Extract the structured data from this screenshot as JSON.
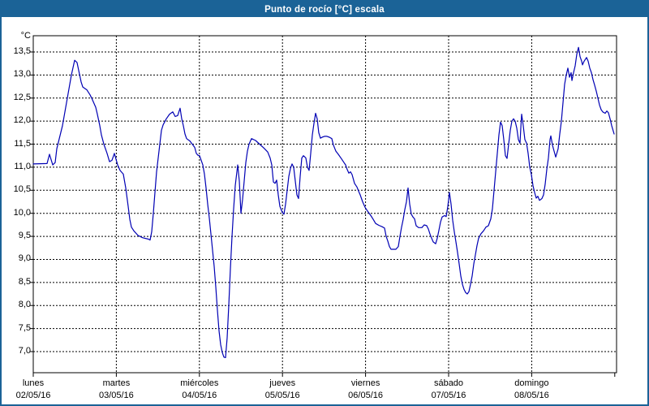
{
  "window": {
    "title": "Punto de rocío [°C] escala"
  },
  "colors": {
    "titlebar": "#1b6397",
    "window_border": "#1b6397",
    "line": "#0000b4",
    "grid": "#000000",
    "plot_border": "#000000",
    "text": "#000000",
    "background": "#ffffff"
  },
  "chart_data": {
    "type": "line",
    "title": "Punto de rocío [°C] escala",
    "ylabel": "°C",
    "xlabel": "",
    "grid": "dashed both axes",
    "legend": "none",
    "ylim": [
      6.55,
      13.85
    ],
    "xlim_days": [
      0,
      7.02
    ],
    "y_ticks": [
      {
        "label": "13,5",
        "v": 13.5
      },
      {
        "label": "13,0",
        "v": 13.0
      },
      {
        "label": "12,5",
        "v": 12.5
      },
      {
        "label": "12,0",
        "v": 12.0
      },
      {
        "label": "11,5",
        "v": 11.5
      },
      {
        "label": "11,0",
        "v": 11.0
      },
      {
        "label": "10,5",
        "v": 10.5
      },
      {
        "label": "10,0",
        "v": 10.0
      },
      {
        "label": "9,5",
        "v": 9.5
      },
      {
        "label": "9,0",
        "v": 9.0
      },
      {
        "label": "8,5",
        "v": 8.5
      },
      {
        "label": "8,0",
        "v": 8.0
      },
      {
        "label": "7,5",
        "v": 7.5
      },
      {
        "label": "7,0",
        "v": 7.0
      }
    ],
    "x_ticks": [
      {
        "weekday": "lunes",
        "date": "02/05/16",
        "t": 0
      },
      {
        "weekday": "martes",
        "date": "03/05/16",
        "t": 1
      },
      {
        "weekday": "miércoles",
        "date": "04/05/16",
        "t": 2
      },
      {
        "weekday": "jueves",
        "date": "05/05/16",
        "t": 3
      },
      {
        "weekday": "viernes",
        "date": "06/05/16",
        "t": 4
      },
      {
        "weekday": "sábado",
        "date": "07/05/16",
        "t": 5
      },
      {
        "weekday": "domingo",
        "date": "08/05/16",
        "t": 6
      }
    ],
    "axis_end_tick_t": 7,
    "series": [
      {
        "name": "Punto de rocío",
        "color": "#0000b4",
        "points": [
          [
            0,
            11.07
          ],
          [
            0.166,
            11.08
          ],
          [
            0.195,
            11.28
          ],
          [
            0.234,
            11.05
          ],
          [
            0.264,
            11.1
          ],
          [
            0.283,
            11.4
          ],
          [
            0.352,
            11.9
          ],
          [
            0.41,
            12.5
          ],
          [
            0.459,
            13.0
          ],
          [
            0.498,
            13.32
          ],
          [
            0.527,
            13.27
          ],
          [
            0.547,
            13.1
          ],
          [
            0.576,
            12.85
          ],
          [
            0.596,
            12.74
          ],
          [
            0.645,
            12.68
          ],
          [
            0.684,
            12.57
          ],
          [
            0.703,
            12.5
          ],
          [
            0.752,
            12.3
          ],
          [
            0.771,
            12.15
          ],
          [
            0.801,
            11.9
          ],
          [
            0.82,
            11.7
          ],
          [
            0.85,
            11.5
          ],
          [
            0.889,
            11.3
          ],
          [
            0.918,
            11.12
          ],
          [
            0.947,
            11.15
          ],
          [
            0.977,
            11.3
          ],
          [
            1.016,
            11.05
          ],
          [
            1.045,
            10.93
          ],
          [
            1.084,
            10.85
          ],
          [
            1.113,
            10.55
          ],
          [
            1.143,
            10.15
          ],
          [
            1.162,
            9.87
          ],
          [
            1.182,
            9.7
          ],
          [
            1.211,
            9.62
          ],
          [
            1.26,
            9.52
          ],
          [
            1.318,
            9.47
          ],
          [
            1.387,
            9.44
          ],
          [
            1.406,
            9.42
          ],
          [
            1.426,
            9.6
          ],
          [
            1.445,
            10.0
          ],
          [
            1.465,
            10.45
          ],
          [
            1.484,
            10.9
          ],
          [
            1.504,
            11.2
          ],
          [
            1.523,
            11.5
          ],
          [
            1.543,
            11.8
          ],
          [
            1.563,
            11.92
          ],
          [
            1.602,
            12.05
          ],
          [
            1.641,
            12.15
          ],
          [
            1.68,
            12.2
          ],
          [
            1.709,
            12.1
          ],
          [
            1.738,
            12.12
          ],
          [
            1.768,
            12.28
          ],
          [
            1.787,
            12.05
          ],
          [
            1.807,
            11.9
          ],
          [
            1.826,
            11.72
          ],
          [
            1.846,
            11.62
          ],
          [
            1.885,
            11.57
          ],
          [
            1.914,
            11.5
          ],
          [
            1.943,
            11.43
          ],
          [
            1.963,
            11.3
          ],
          [
            1.982,
            11.26
          ],
          [
            2.002,
            11.25
          ],
          [
            2.021,
            11.15
          ],
          [
            2.041,
            11.05
          ],
          [
            2.061,
            10.85
          ],
          [
            2.08,
            10.55
          ],
          [
            2.1,
            10.2
          ],
          [
            2.119,
            9.9
          ],
          [
            2.139,
            9.55
          ],
          [
            2.158,
            9.2
          ],
          [
            2.178,
            8.85
          ],
          [
            2.197,
            8.4
          ],
          [
            2.217,
            7.9
          ],
          [
            2.236,
            7.45
          ],
          [
            2.256,
            7.15
          ],
          [
            2.275,
            6.98
          ],
          [
            2.295,
            6.88
          ],
          [
            2.314,
            6.87
          ],
          [
            2.334,
            7.3
          ],
          [
            2.354,
            8.0
          ],
          [
            2.373,
            8.8
          ],
          [
            2.393,
            9.5
          ],
          [
            2.412,
            10.1
          ],
          [
            2.432,
            10.6
          ],
          [
            2.461,
            11.05
          ],
          [
            2.48,
            10.7
          ],
          [
            2.5,
            10.0
          ],
          [
            2.52,
            10.3
          ],
          [
            2.539,
            10.7
          ],
          [
            2.559,
            11.1
          ],
          [
            2.578,
            11.35
          ],
          [
            2.598,
            11.5
          ],
          [
            2.627,
            11.62
          ],
          [
            2.676,
            11.58
          ],
          [
            2.725,
            11.5
          ],
          [
            2.773,
            11.42
          ],
          [
            2.822,
            11.33
          ],
          [
            2.852,
            11.2
          ],
          [
            2.871,
            11.05
          ],
          [
            2.891,
            10.68
          ],
          [
            2.91,
            10.65
          ],
          [
            2.93,
            10.72
          ],
          [
            2.949,
            10.4
          ],
          [
            2.969,
            10.15
          ],
          [
            2.998,
            10.02
          ],
          [
            3.018,
            9.98
          ],
          [
            3.037,
            10.2
          ],
          [
            3.057,
            10.5
          ],
          [
            3.076,
            10.8
          ],
          [
            3.096,
            10.97
          ],
          [
            3.115,
            11.07
          ],
          [
            3.135,
            11.0
          ],
          [
            3.154,
            10.7
          ],
          [
            3.174,
            10.4
          ],
          [
            3.193,
            10.32
          ],
          [
            3.213,
            10.8
          ],
          [
            3.232,
            11.2
          ],
          [
            3.252,
            11.25
          ],
          [
            3.281,
            11.2
          ],
          [
            3.301,
            11.0
          ],
          [
            3.32,
            10.93
          ],
          [
            3.34,
            11.3
          ],
          [
            3.359,
            11.7
          ],
          [
            3.379,
            11.95
          ],
          [
            3.398,
            12.17
          ],
          [
            3.418,
            12.05
          ],
          [
            3.437,
            11.75
          ],
          [
            3.457,
            11.63
          ],
          [
            3.477,
            11.65
          ],
          [
            3.506,
            11.67
          ],
          [
            3.535,
            11.67
          ],
          [
            3.564,
            11.65
          ],
          [
            3.594,
            11.62
          ],
          [
            3.613,
            11.48
          ],
          [
            3.643,
            11.35
          ],
          [
            3.672,
            11.28
          ],
          [
            3.711,
            11.18
          ],
          [
            3.74,
            11.1
          ],
          [
            3.76,
            11.05
          ],
          [
            3.779,
            10.95
          ],
          [
            3.799,
            10.87
          ],
          [
            3.818,
            10.9
          ],
          [
            3.838,
            10.84
          ],
          [
            3.867,
            10.65
          ],
          [
            3.896,
            10.57
          ],
          [
            3.916,
            10.48
          ],
          [
            3.936,
            10.4
          ],
          [
            3.965,
            10.25
          ],
          [
            3.994,
            10.13
          ],
          [
            4.023,
            10.05
          ],
          [
            4.063,
            9.95
          ],
          [
            4.092,
            9.87
          ],
          [
            4.121,
            9.78
          ],
          [
            4.16,
            9.74
          ],
          [
            4.199,
            9.71
          ],
          [
            4.229,
            9.68
          ],
          [
            4.248,
            9.5
          ],
          [
            4.268,
            9.4
          ],
          [
            4.287,
            9.28
          ],
          [
            4.307,
            9.22
          ],
          [
            4.365,
            9.22
          ],
          [
            4.395,
            9.28
          ],
          [
            4.414,
            9.5
          ],
          [
            4.434,
            9.7
          ],
          [
            4.453,
            9.87
          ],
          [
            4.473,
            10.08
          ],
          [
            4.492,
            10.25
          ],
          [
            4.512,
            10.55
          ],
          [
            4.531,
            10.2
          ],
          [
            4.551,
            9.98
          ],
          [
            4.57,
            9.92
          ],
          [
            4.59,
            9.88
          ],
          [
            4.609,
            9.73
          ],
          [
            4.639,
            9.69
          ],
          [
            4.678,
            9.69
          ],
          [
            4.707,
            9.75
          ],
          [
            4.736,
            9.73
          ],
          [
            4.756,
            9.66
          ],
          [
            4.775,
            9.55
          ],
          [
            4.795,
            9.46
          ],
          [
            4.814,
            9.38
          ],
          [
            4.844,
            9.34
          ],
          [
            4.863,
            9.46
          ],
          [
            4.883,
            9.63
          ],
          [
            4.902,
            9.81
          ],
          [
            4.922,
            9.92
          ],
          [
            4.951,
            9.95
          ],
          [
            4.971,
            9.93
          ],
          [
            4.99,
            10.15
          ],
          [
            5.01,
            10.45
          ],
          [
            5.029,
            10.2
          ],
          [
            5.049,
            9.85
          ],
          [
            5.068,
            9.6
          ],
          [
            5.088,
            9.38
          ],
          [
            5.107,
            9.15
          ],
          [
            5.127,
            8.9
          ],
          [
            5.146,
            8.64
          ],
          [
            5.166,
            8.46
          ],
          [
            5.186,
            8.35
          ],
          [
            5.205,
            8.28
          ],
          [
            5.225,
            8.25
          ],
          [
            5.244,
            8.3
          ],
          [
            5.264,
            8.46
          ],
          [
            5.283,
            8.64
          ],
          [
            5.303,
            8.9
          ],
          [
            5.322,
            9.1
          ],
          [
            5.342,
            9.3
          ],
          [
            5.361,
            9.46
          ],
          [
            5.391,
            9.56
          ],
          [
            5.42,
            9.62
          ],
          [
            5.449,
            9.7
          ],
          [
            5.479,
            9.73
          ],
          [
            5.508,
            9.88
          ],
          [
            5.527,
            10.1
          ],
          [
            5.547,
            10.5
          ],
          [
            5.566,
            10.9
          ],
          [
            5.586,
            11.3
          ],
          [
            5.605,
            11.7
          ],
          [
            5.625,
            11.98
          ],
          [
            5.645,
            11.9
          ],
          [
            5.664,
            11.6
          ],
          [
            5.684,
            11.25
          ],
          [
            5.703,
            11.19
          ],
          [
            5.723,
            11.5
          ],
          [
            5.742,
            11.8
          ],
          [
            5.762,
            12.0
          ],
          [
            5.781,
            12.05
          ],
          [
            5.801,
            12.0
          ],
          [
            5.82,
            11.85
          ],
          [
            5.84,
            11.6
          ],
          [
            5.859,
            11.52
          ],
          [
            5.869,
            11.86
          ],
          [
            5.879,
            12.15
          ],
          [
            5.898,
            11.9
          ],
          [
            5.918,
            11.6
          ],
          [
            5.938,
            11.52
          ],
          [
            5.957,
            11.3
          ],
          [
            5.977,
            11.0
          ],
          [
            5.996,
            10.84
          ],
          [
            6.016,
            10.6
          ],
          [
            6.035,
            10.45
          ],
          [
            6.055,
            10.33
          ],
          [
            6.074,
            10.37
          ],
          [
            6.094,
            10.28
          ],
          [
            6.123,
            10.32
          ],
          [
            6.143,
            10.4
          ],
          [
            6.162,
            10.63
          ],
          [
            6.182,
            10.95
          ],
          [
            6.201,
            11.2
          ],
          [
            6.221,
            11.6
          ],
          [
            6.23,
            11.68
          ],
          [
            6.25,
            11.48
          ],
          [
            6.27,
            11.35
          ],
          [
            6.289,
            11.22
          ],
          [
            6.318,
            11.4
          ],
          [
            6.338,
            11.72
          ],
          [
            6.357,
            12.0
          ],
          [
            6.377,
            12.4
          ],
          [
            6.396,
            12.8
          ],
          [
            6.416,
            13.0
          ],
          [
            6.436,
            13.15
          ],
          [
            6.455,
            12.95
          ],
          [
            6.475,
            13.05
          ],
          [
            6.484,
            12.88
          ],
          [
            6.504,
            13.05
          ],
          [
            6.523,
            13.2
          ],
          [
            6.543,
            13.45
          ],
          [
            6.563,
            13.6
          ],
          [
            6.582,
            13.4
          ],
          [
            6.602,
            13.3
          ],
          [
            6.611,
            13.22
          ],
          [
            6.631,
            13.3
          ],
          [
            6.66,
            13.38
          ],
          [
            6.68,
            13.3
          ],
          [
            6.699,
            13.15
          ],
          [
            6.719,
            13.05
          ],
          [
            6.738,
            12.9
          ],
          [
            6.758,
            12.78
          ],
          [
            6.777,
            12.65
          ],
          [
            6.797,
            12.5
          ],
          [
            6.816,
            12.35
          ],
          [
            6.836,
            12.25
          ],
          [
            6.855,
            12.2
          ],
          [
            6.885,
            12.17
          ],
          [
            6.904,
            12.22
          ],
          [
            6.924,
            12.18
          ],
          [
            6.943,
            12.05
          ],
          [
            6.963,
            11.9
          ],
          [
            6.982,
            11.78
          ],
          [
            6.992,
            11.72
          ]
        ]
      }
    ]
  }
}
